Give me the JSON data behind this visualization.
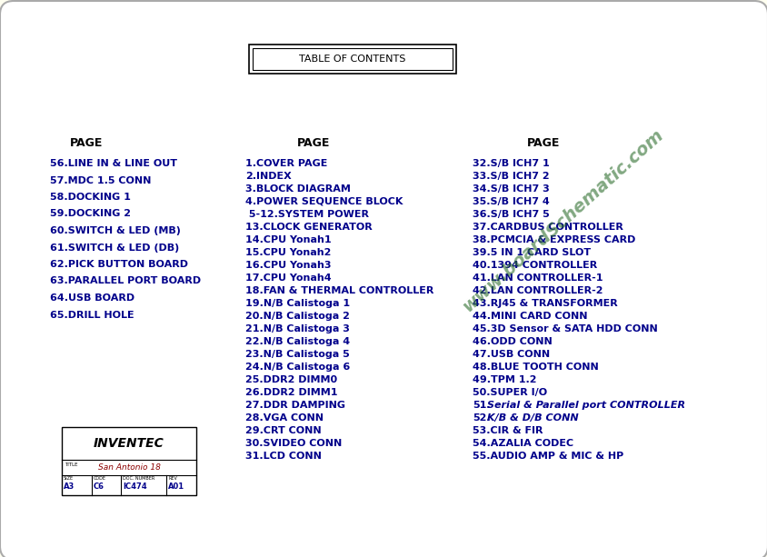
{
  "bg_color": "#fffff0",
  "page_bg": "#ffffff",
  "title": "TABLE OF CONTENTS",
  "watermark": "www.boardSchematic.com",
  "col1_header": "PAGE",
  "col2_header": "PAGE",
  "col3_header": "PAGE",
  "col1_items": [
    "56.LINE IN & LINE OUT",
    "57.MDC 1.5 CONN",
    "58.DOCKING 1",
    "59.DOCKING 2",
    "60.SWITCH & LED (MB)",
    "61.SWITCH & LED (DB)",
    "62.PICK BUTTON BOARD",
    "63.PARALLEL PORT BOARD",
    "64.USB BOARD",
    "65.DRILL HOLE"
  ],
  "col2_items": [
    "1.COVER PAGE",
    "2.INDEX",
    "3.BLOCK DIAGRAM",
    "4.POWER SEQUENCE BLOCK",
    " 5-12.SYSTEM POWER",
    "13.CLOCK GENERATOR",
    "14.CPU Yonah1",
    "15.CPU Yonah2",
    "16.CPU Yonah3",
    "17.CPU Yonah4",
    "18.FAN & THERMAL CONTROLLER",
    "19.N/B Calistoga 1",
    "20.N/B Calistoga 2",
    "21.N/B Calistoga 3",
    "22.N/B Calistoga 4",
    "23.N/B Calistoga 5",
    "24.N/B Calistoga 6",
    "25.DDR2 DIMM0",
    "26.DDR2 DIMM1",
    "27.DDR DAMPING",
    "28.VGA CONN",
    "29.CRT CONN",
    "30.SVIDEO CONN",
    "31.LCD CONN"
  ],
  "col3_items": [
    "32.S/B ICH7 1",
    "33.S/B ICH7 2",
    "34.S/B ICH7 3",
    "35.S/B ICH7 4",
    "36.S/B ICH7 5",
    "37.CARDBUS CONTROLLER",
    "38.PCMCIA & EXPRESS CARD",
    "39.5 IN 1 CARD SLOT",
    "40.1394 CONTROLLER",
    "41.LAN CONTROLLER-1",
    "42.LAN CONTROLLER-2",
    "43.RJ45 & TRANSFORMER",
    "44.MINI CARD CONN",
    "45.3D Sensor & SATA HDD CONN",
    "46.ODD CONN",
    "47.USB CONN",
    "48.BLUE TOOTH CONN",
    "49.TPM 1.2",
    "50.SUPER I/O",
    "51.Serial & Parallel port CONTROLLER",
    "52.K/B & D/B CONN",
    "53.CIR & FIR",
    "54.AZALIA CODEC",
    "55.AUDIO AMP & MIC & HP"
  ],
  "col3_italic_indices": [
    19,
    20
  ],
  "text_color": "#00008B",
  "title_color": "#000000"
}
